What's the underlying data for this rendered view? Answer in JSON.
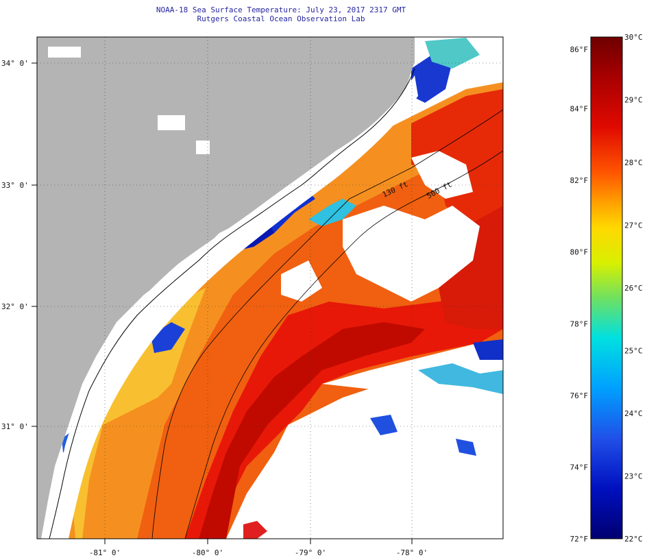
{
  "header": {
    "title": "NOAA-18 Sea Surface Temperature:  July 23, 2017 2317 GMT",
    "subtitle": "Rutgers Coastal Ocean Observation Lab"
  },
  "map": {
    "lat_labels": [
      "34° 0'",
      "33° 0'",
      "32° 0'",
      "31° 0'"
    ],
    "lon_labels": [
      "-81° 0'",
      "-80° 0'",
      "-79° 0'",
      "-78° 0'"
    ],
    "isobaths": [
      "130 ft",
      "500 ft"
    ],
    "colors": {
      "land": "#b4b4b4",
      "cloud": "#ffffff",
      "coast": "#000000"
    }
  },
  "colorbar": {
    "fahrenheit": [
      "86°F",
      "84°F",
      "82°F",
      "80°F",
      "78°F",
      "76°F",
      "74°F",
      "72°F"
    ],
    "celsius": [
      "30°C",
      "29°C",
      "28°C",
      "27°C",
      "26°C",
      "25°C",
      "24°C",
      "23°C",
      "22°C"
    ],
    "range_c": [
      22,
      30
    ],
    "range_f": [
      72,
      86
    ]
  }
}
